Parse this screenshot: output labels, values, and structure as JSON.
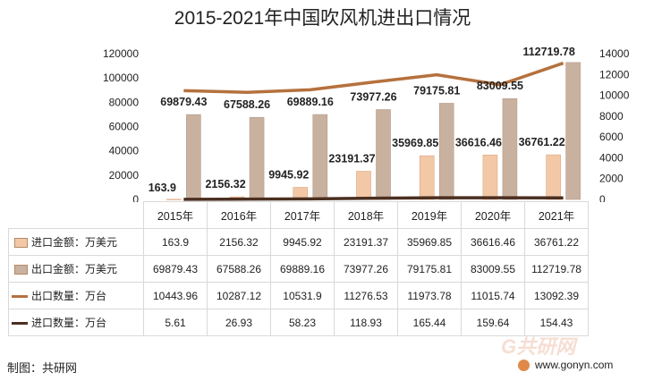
{
  "title": "2015-2021年中国吹风机进出口情况",
  "credit": "制图：共研网",
  "site": "www.gonyn.com",
  "watermark": "G共研网",
  "colors": {
    "import_amount": "#f2c8a7",
    "export_amount": "#c9b1a0",
    "export_qty": "#b5713d",
    "import_qty": "#4b2f20"
  },
  "chart_data": {
    "type": "bar",
    "categories": [
      "2015年",
      "2016年",
      "2017年",
      "2018年",
      "2019年",
      "2020年",
      "2021年"
    ],
    "series": [
      {
        "name": "进口金额：万美元",
        "type": "bar",
        "axis": "left",
        "values": [
          163.9,
          2156.32,
          9945.92,
          23191.37,
          35969.85,
          36616.46,
          36761.22
        ],
        "labels": [
          "163.9",
          "2156.32",
          "9945.92",
          "23191.37",
          "35969.85",
          "36616.46",
          "36761.22"
        ]
      },
      {
        "name": "出口金额：万美元",
        "type": "bar",
        "axis": "left",
        "values": [
          69879.43,
          67588.26,
          69889.16,
          73977.26,
          79175.81,
          83009.55,
          112719.78
        ],
        "labels": [
          "69879.43",
          "67588.26",
          "69889.16",
          "73977.26",
          "79175.81",
          "83009.55",
          "112719.78"
        ]
      },
      {
        "name": "出口数量：万台",
        "type": "line",
        "axis": "right",
        "values": [
          10443.96,
          10287.12,
          10531.9,
          11276.53,
          11973.78,
          11015.74,
          13092.39
        ],
        "labels": [
          "10443.96",
          "10287.12",
          "10531.9",
          "11276.53",
          "11973.78",
          "11015.74",
          "13092.39"
        ]
      },
      {
        "name": "进口数量：万台",
        "type": "line",
        "axis": "right",
        "values": [
          5.61,
          26.93,
          58.23,
          118.93,
          165.44,
          159.64,
          154.43
        ],
        "labels": [
          "5.61",
          "26.93",
          "58.23",
          "118.93",
          "165.44",
          "159.64",
          "154.43"
        ]
      }
    ],
    "y_left": {
      "min": 0,
      "max": 120000,
      "ticks": [
        "0",
        "20000",
        "40000",
        "60000",
        "80000",
        "100000",
        "120000"
      ]
    },
    "y_right": {
      "min": 0,
      "max": 14000,
      "ticks": [
        "0",
        "2000",
        "4000",
        "6000",
        "8000",
        "10000",
        "12000",
        "14000"
      ]
    },
    "grid": false,
    "legend": "table-below"
  }
}
